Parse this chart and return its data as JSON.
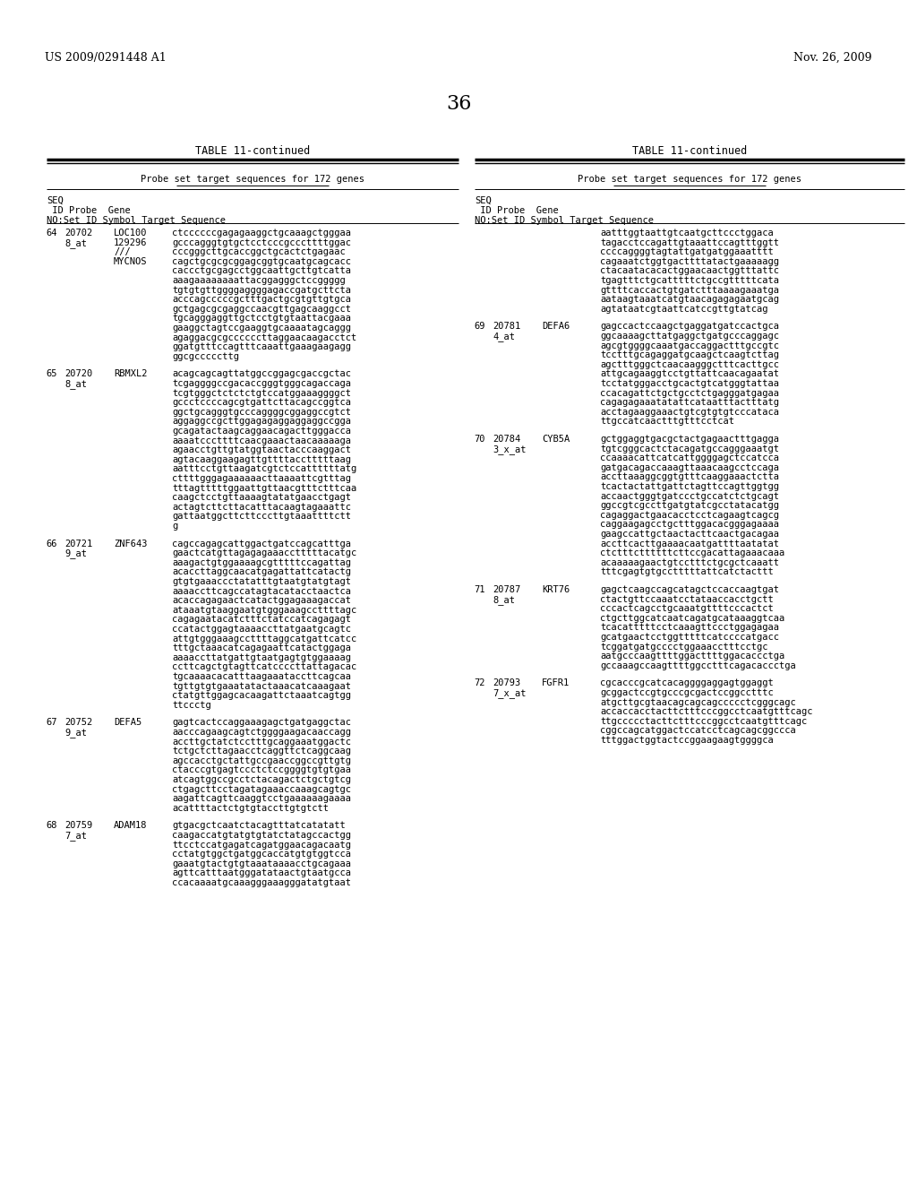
{
  "background_color": "#ffffff",
  "header_left": "US 2009/0291448 A1",
  "header_right": "Nov. 26, 2009",
  "page_number": "36",
  "table_title": "TABLE 11-continued",
  "table_subtitle": "Probe set target sequences for 172 genes",
  "left_entries": [
    {
      "seq": "64",
      "probe": "20702\n8_at",
      "gene": "LOC100\n129296\n///\nMYCNOS",
      "sequence": "ctccccccgagagaaggctgcaaagctgggaa\ngcccagggtgtgctcctcccgcccttttggac\ncccgggcttgcaccggctgcactctgagaac\ncagctgcgcgcggagcggtgcaatgcagcacc\ncaccctgcgagcctggcaattgcttgtcatta\naaagaaaaaaaattacggagggctccggggg\ntgtgtgttggggaggggagaccgatgcttcta\nacccagcccccgctttgactgcgtgttgtgca\ngctgagcgcgaggccaacgttgagcaaggcct\ntgcagggaggttgctcctgtgtaattacgaaa\ngaaggctagtccgaaggtgcaaaatagcaggg\nagaggacgcgccccccttaggaacaagacctct\nggatgtttccagtttcaaattgaaagaagagg\nggcgcccccttg"
    },
    {
      "seq": "65",
      "probe": "20720\n8_at",
      "gene": "RBMXL2",
      "sequence": "acagcagcagttatggccggagcgaccgctac\ntcgaggggccgacaccgggtgggcagaccaga\ntcgtgggctctctctgtccatggaaaggggct\ngccctccccagcgtgattcttacagccggtca\nggctgcagggtgcccaggggcggaggccgtct\naggaggccgcttggagagaggaggaggccgga\ngcagatactaagcaggaacagacttgggacca\naaaatcccttttcaacgaaactaacaaaaaga\nagaacctgttgtatggtaactacccaaggact\nagtacaaggaagagttgttttacctttttaag\naatttcctgttaagatcgtctccattttttatg\ncttttgggagaaaaaacttaaaattcgtttag\ntttagtttttggaattgttaacgtttctttcaa\ncaagctcctgttaaaagtatatgaacctgagt\nactagtcttcttacatttacaagtagaaattc\ngattaatggcttcttcccttgtaaattttctt\ng"
    },
    {
      "seq": "66",
      "probe": "20721\n9_at",
      "gene": "ZNF643",
      "sequence": "cagccagagcattggactgatccagcatttga\ngaactcatgttagagagaaacctttttacatgc\naaagactgtggaaaagcgtttttccagattag\nacaccttaggcaacatgagattattcatactg\ngtgtgaaaccctatatttgtaatgtatgtagt\naaaaccttcagccatagtacatacctaactca\nacaccagagaactcatactggagaaagaccat\nataaatgtaaggaatgtgggaaagccttttagc\ncagagaatacatctttctatccatcagagagt\nccatactggagtaaaaccttatgaatgcagtc\nattgtgggaaagccttttaggcatgattcatcc\ntttgctaaacatcagagaattcatactggaga\naaaaccttatgattgtaatgagtgtggaaaag\nccttcagctgtagttcatccccttattagacac\ntgcaaaacacatttaagaaataccttcagcaa\ntgttgtgtgaaatatactaaacatcaaagaat\nctatgttggagcacaagattctaaatcagtgg\nttccctg"
    },
    {
      "seq": "67",
      "probe": "20752\n9_at",
      "gene": "DEFA5",
      "sequence": "gagtcactccaggaaagagctgatgaggctac\naacccagaagcagtctggggaagacaaccagg\naccttgctatctcctttgcaggaaatggactc\ntctgctcttagaacctcaggttctcaggcaag\nagccacctgctattgccgaaccggccgttgtg\nctacccgtgagtccctctccggggtgtgtgaa\natcagtggccgcctctacagactctgctgtcg\nctgagcttcctagatagaaaccaaagcagtgc\naagattcagttcaaggtcctgaaaaaagaaaa\nacattttactctgtgtaccttgtgtctt"
    },
    {
      "seq": "68",
      "probe": "20759\n7_at",
      "gene": "ADAM18",
      "sequence": "gtgacgctcaatctacagtttatcatatatt\ncaagaccatgtatgtgtatctatagccactgg\nttcctccatgagatcagatggaacagacaatg\ncctatgtggctgatggcaccatgtgtggtcca\ngaaatgtactgtgtaaataaaacctgcagaaa\nagttcatttaatgggatataactgtaatgcca\nccacaaaatgcaaagggaaagggatatgtaat"
    }
  ],
  "right_col_continuation": [
    "aatttggtaattgtcaatgcttccctggaca",
    "tagacctccagattgtaaattccagtttggtt",
    "ccccaggggtagtattgatgatggaaatttt",
    "cagaaatctggtgacttttatactgaaaaagg",
    "ctacaatacacactggaacaactggtttattc",
    "tgagtttctgcatttttctgccgtttttcata",
    "gttttcaccactgtgatctttaaaagaaatga",
    "aataagtaaatcatgtaacagagagaatgcag",
    "agtataatcgtaattcatccgttgtatcag"
  ],
  "right_entries": [
    {
      "seq": "69",
      "probe": "20781\n4_at",
      "gene": "DEFA6",
      "sequence": "gagccactccaagctgaggatgatccactgca\nggcaaaagcttatgaggctgatgcccaggagc\nagcgtggggcaaatgaccaggactttgccgtc\ntcctttgcagaggatgcaagctcaagtcttag\nagctttgggctcaacaagggctttcacttgcc\nattgcagaaggtcctgttattcaacagaatat\ntcctatgggacctgcactgtcatgggtattaa\nccacagattctgctgcctctgagggatgagaa\ncagagagaaatatattcataatttactttatg\nacctagaaggaaactgtcgtgtgtcccataca\nttgccatcaactttgtttcctcat"
    },
    {
      "seq": "70",
      "probe": "20784\n3_x_at",
      "gene": "CYB5A",
      "sequence": "gctggaggtgacgctactgagaactttgagga\ntgtcgggcactctacagatgccagggaaatgt\nccaaaacattcatcattggggagctccatcca\ngatgacagaccaaagttaaacaagcctccaga\naccttaaaggcggtgtttcaaggaaactctta\ntcactactattgattctagttccagttggtgg\naccaactgggtgatccctgccatctctgcagt\nggccgtcgccttgatgtatcgcctatacatgg\ncagaggactgaacacctcctcagaagtcagcg\ncaggaagagcctgctttggacacgggagaaaa\ngaagccattgctaactacttcaactgacagaa\naccttcacttgaaaacaatgattttaatatat\nctctttcttttttcttccgacattagaaacaaa\nacaaaaagaactgtcctttctgcgctcaaatt\ntttcgagtgtgcctttttattcatctacttt"
    },
    {
      "seq": "71",
      "probe": "20787\n8_at",
      "gene": "KRT76",
      "sequence": "gagctcaagccagcatagctccaccaagtgat\nctactgttccaaatcctataaccacctgctt\ncccactcagcctgcaaatgttttcccactct\nctgcttggcatcaatcagatgcataaaggtcaa\ntcacatttttcctcaaagttccctggagagaa\ngcatgaactcctggtttttcatccccatgacc\ntcggatgatgcccctggaaacctttcctgc\naatgcccaagttttggacttttggacaccctga\ngccaaagccaagttttggcctttcagacaccctga"
    },
    {
      "seq": "72",
      "probe": "20793\n7_x_at",
      "gene": "FGFR1",
      "sequence": "cgcacccgcatcacaggggaggagtggaggt\ngcggactccgtgcccgcgactccggcctttc\natgcttgcgtaacagcagcagccccctcgggcagc\naccaccacctacttctttcccggcctcaatgtttcagc\nttgccccctacttctttcccggcctcaatgtttcagc\ncggccagcatggactccatcctcagcagcggccca\ntttggactggtactccggaagaagtggggca"
    }
  ]
}
